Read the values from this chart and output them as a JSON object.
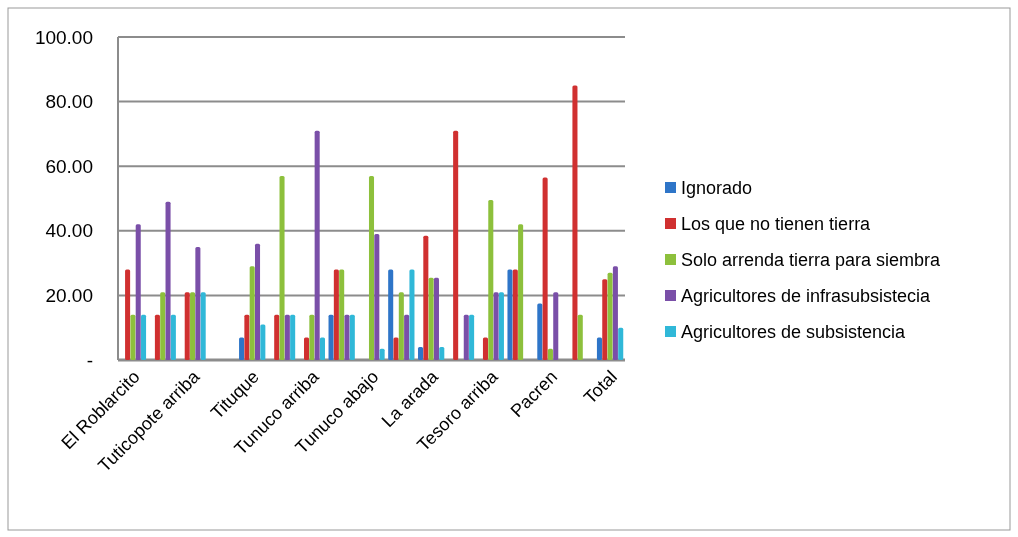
{
  "chart_data": {
    "type": "bar",
    "categories": [
      "El Roblarcito",
      null,
      "Tuticopote arriba",
      null,
      "Tituque",
      null,
      "Tunuco arriba",
      null,
      "Tunuco abajo",
      null,
      "La arada",
      null,
      "Tesoro arriba",
      null,
      "Pacren",
      null,
      "Total"
    ],
    "series": [
      {
        "name": "Ignorado",
        "color": "#2e75c8",
        "values": [
          0,
          0,
          0,
          0,
          7,
          0,
          0,
          14,
          0,
          28,
          4,
          0,
          0,
          28,
          17.5,
          0,
          7
        ]
      },
      {
        "name": "Los que no tienen tierra",
        "color": "#d03030",
        "values": [
          28,
          14,
          21,
          0,
          14,
          14,
          7,
          28,
          0,
          7,
          38.5,
          71,
          7,
          28,
          56.5,
          85,
          25
        ]
      },
      {
        "name": "Solo arrenda tierra para siembra",
        "color": "#8dc03c",
        "values": [
          14,
          21,
          21,
          0,
          29,
          57,
          14,
          28,
          57,
          21,
          25.5,
          0,
          49.5,
          42,
          3.5,
          14,
          27
        ]
      },
      {
        "name": "Agricultores de infrasubsistecia",
        "color": "#7a4fa8",
        "values": [
          42,
          49,
          35,
          0,
          36,
          14,
          71,
          14,
          39,
          14,
          25.5,
          14,
          21,
          0,
          21,
          0,
          29
        ]
      },
      {
        "name": "Agricultores de subsistencia",
        "color": "#30b8d8",
        "values": [
          14,
          14,
          21,
          0,
          11,
          14,
          7,
          14,
          3.5,
          28,
          4,
          14,
          21,
          0,
          0,
          0,
          10
        ]
      }
    ],
    "ylim": [
      0,
      100
    ],
    "yticks": [
      {
        "value": 0,
        "label": "-"
      },
      {
        "value": 20,
        "label": "20.00"
      },
      {
        "value": 40,
        "label": "40.00"
      },
      {
        "value": 60,
        "label": "60.00"
      },
      {
        "value": 80,
        "label": "80.00"
      },
      {
        "value": 100,
        "label": "100.00"
      }
    ],
    "grid": "y",
    "legend": "right"
  }
}
